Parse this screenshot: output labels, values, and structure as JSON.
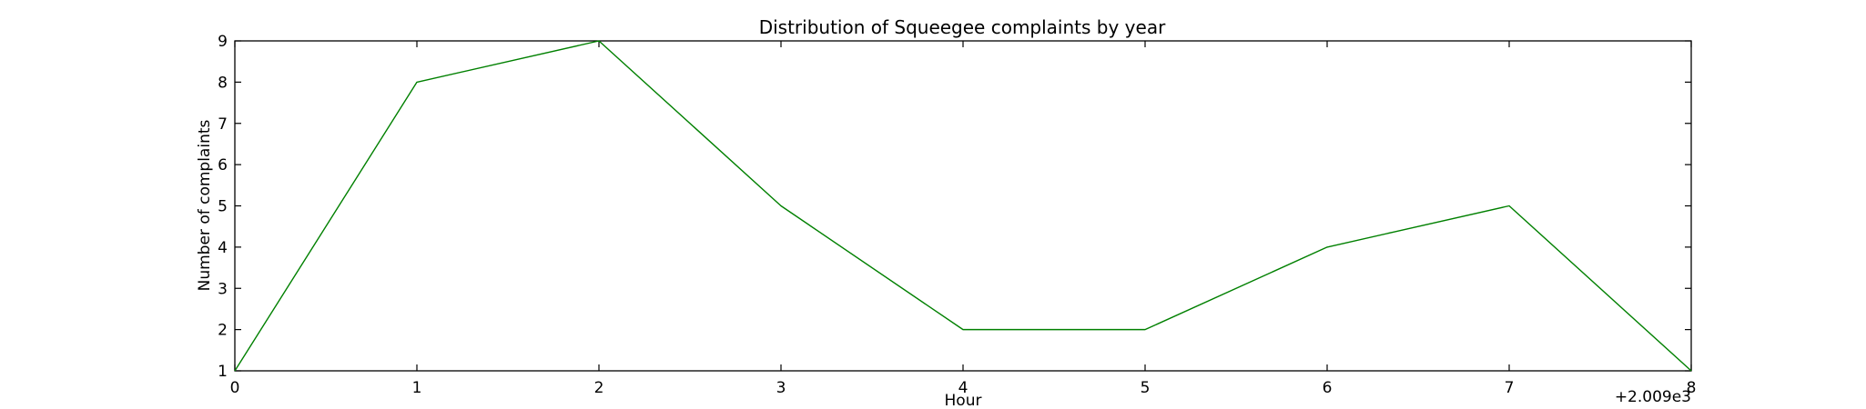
{
  "chart_data": {
    "type": "line",
    "title": "Distribution of  Squeegee complaints by year",
    "xlabel": "Hour",
    "ylabel": "Number of complaints",
    "x_offset_label": "+2.009e3",
    "x": [
      0,
      1,
      2,
      3,
      4,
      5,
      6,
      7,
      8
    ],
    "x_tick_labels": [
      "0",
      "1",
      "2",
      "3",
      "4",
      "5",
      "6",
      "7",
      "8"
    ],
    "y_tick_labels": [
      "1",
      "2",
      "3",
      "4",
      "5",
      "6",
      "7",
      "8",
      "9"
    ],
    "xlim": [
      0,
      8
    ],
    "ylim": [
      1,
      9
    ],
    "grid": false,
    "series": [
      {
        "values": [
          1,
          8,
          9,
          5,
          2,
          2,
          4,
          5,
          1
        ],
        "color": "#008000"
      }
    ]
  }
}
